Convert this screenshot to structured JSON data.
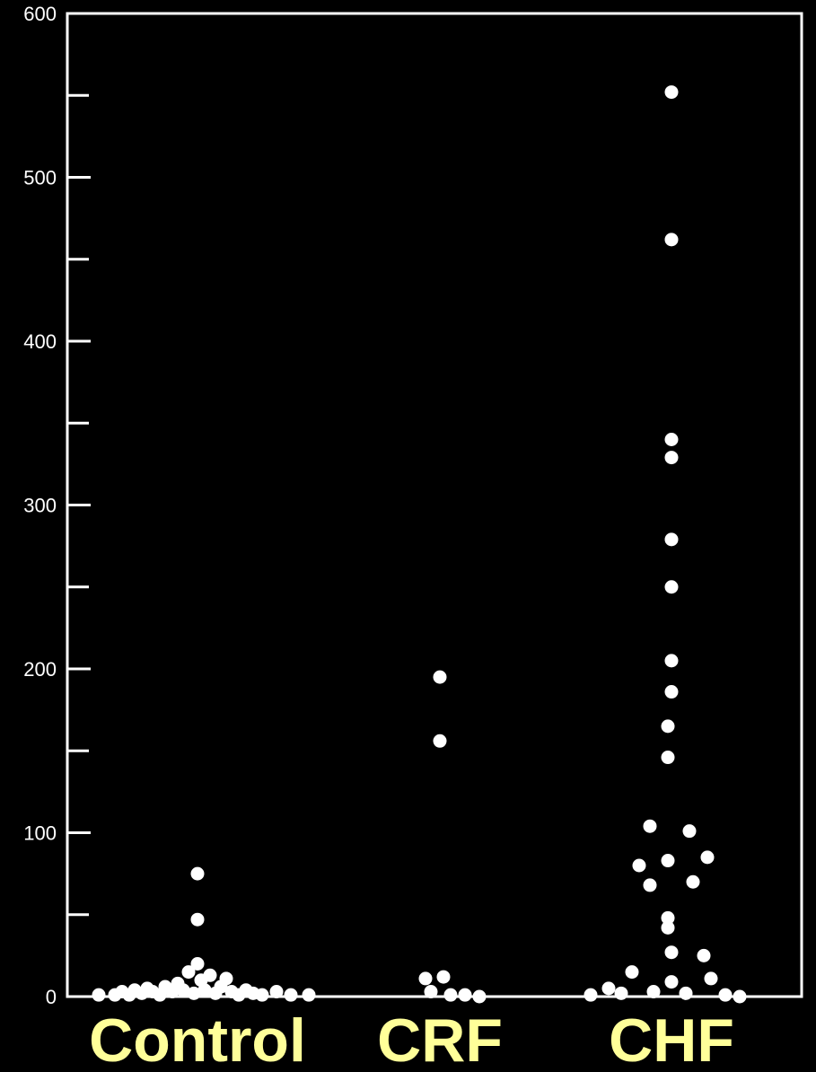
{
  "chart_data": {
    "type": "scatter",
    "title": "",
    "xlabel": "",
    "ylabel": "",
    "ylim": [
      0,
      600
    ],
    "yticks": [
      0,
      100,
      200,
      300,
      400,
      500,
      600
    ],
    "ytick_labels": [
      "0",
      "100",
      "200",
      "300",
      "400",
      "500",
      "600"
    ],
    "grid": false,
    "colors": {
      "background": "#000000",
      "axis": "#ffffff",
      "points": "#ffffff",
      "category_labels": "#ffff99"
    },
    "categories": [
      "Control",
      "CRF",
      "CHF"
    ],
    "series": [
      {
        "category": "Control",
        "points": [
          {
            "dx": -0.55,
            "y": 1
          },
          {
            "dx": -0.46,
            "y": 1
          },
          {
            "dx": -0.42,
            "y": 3
          },
          {
            "dx": -0.38,
            "y": 1
          },
          {
            "dx": -0.35,
            "y": 4
          },
          {
            "dx": -0.31,
            "y": 2
          },
          {
            "dx": -0.28,
            "y": 5
          },
          {
            "dx": -0.25,
            "y": 3
          },
          {
            "dx": -0.21,
            "y": 1
          },
          {
            "dx": -0.18,
            "y": 6
          },
          {
            "dx": -0.14,
            "y": 3
          },
          {
            "dx": -0.11,
            "y": 8
          },
          {
            "dx": -0.08,
            "y": 4
          },
          {
            "dx": -0.05,
            "y": 15
          },
          {
            "dx": -0.02,
            "y": 2
          },
          {
            "dx": 0.0,
            "y": 20
          },
          {
            "dx": 0.0,
            "y": 75
          },
          {
            "dx": 0.0,
            "y": 47
          },
          {
            "dx": 0.02,
            "y": 10
          },
          {
            "dx": 0.04,
            "y": 4
          },
          {
            "dx": 0.07,
            "y": 13
          },
          {
            "dx": 0.1,
            "y": 2
          },
          {
            "dx": 0.13,
            "y": 6
          },
          {
            "dx": 0.16,
            "y": 11
          },
          {
            "dx": 0.19,
            "y": 3
          },
          {
            "dx": 0.23,
            "y": 1
          },
          {
            "dx": 0.27,
            "y": 4
          },
          {
            "dx": 0.31,
            "y": 2
          },
          {
            "dx": 0.36,
            "y": 1
          },
          {
            "dx": 0.44,
            "y": 3
          },
          {
            "dx": 0.52,
            "y": 1
          },
          {
            "dx": 0.62,
            "y": 1
          }
        ]
      },
      {
        "category": "CRF",
        "points": [
          {
            "dx": 0.0,
            "y": 195
          },
          {
            "dx": 0.0,
            "y": 156
          },
          {
            "dx": -0.08,
            "y": 11
          },
          {
            "dx": 0.02,
            "y": 12
          },
          {
            "dx": -0.05,
            "y": 3
          },
          {
            "dx": 0.06,
            "y": 1
          },
          {
            "dx": 0.14,
            "y": 1
          },
          {
            "dx": 0.22,
            "y": 0
          }
        ]
      },
      {
        "category": "CHF",
        "points": [
          {
            "dx": 0.0,
            "y": 552
          },
          {
            "dx": 0.0,
            "y": 462
          },
          {
            "dx": 0.0,
            "y": 340
          },
          {
            "dx": 0.0,
            "y": 329
          },
          {
            "dx": 0.0,
            "y": 279
          },
          {
            "dx": 0.0,
            "y": 250
          },
          {
            "dx": 0.0,
            "y": 205
          },
          {
            "dx": 0.0,
            "y": 186
          },
          {
            "dx": -0.02,
            "y": 165
          },
          {
            "dx": -0.02,
            "y": 146
          },
          {
            "dx": -0.12,
            "y": 104
          },
          {
            "dx": 0.1,
            "y": 101
          },
          {
            "dx": -0.18,
            "y": 80
          },
          {
            "dx": -0.02,
            "y": 83
          },
          {
            "dx": 0.2,
            "y": 85
          },
          {
            "dx": -0.12,
            "y": 68
          },
          {
            "dx": 0.12,
            "y": 70
          },
          {
            "dx": -0.02,
            "y": 48
          },
          {
            "dx": -0.02,
            "y": 42
          },
          {
            "dx": 0.0,
            "y": 27
          },
          {
            "dx": 0.18,
            "y": 25
          },
          {
            "dx": -0.22,
            "y": 15
          },
          {
            "dx": 0.22,
            "y": 11
          },
          {
            "dx": 0.0,
            "y": 9
          },
          {
            "dx": -0.35,
            "y": 5
          },
          {
            "dx": -0.28,
            "y": 2
          },
          {
            "dx": -0.1,
            "y": 3
          },
          {
            "dx": 0.08,
            "y": 2
          },
          {
            "dx": 0.3,
            "y": 1
          },
          {
            "dx": -0.45,
            "y": 1
          },
          {
            "dx": 0.38,
            "y": 0
          }
        ]
      }
    ]
  }
}
